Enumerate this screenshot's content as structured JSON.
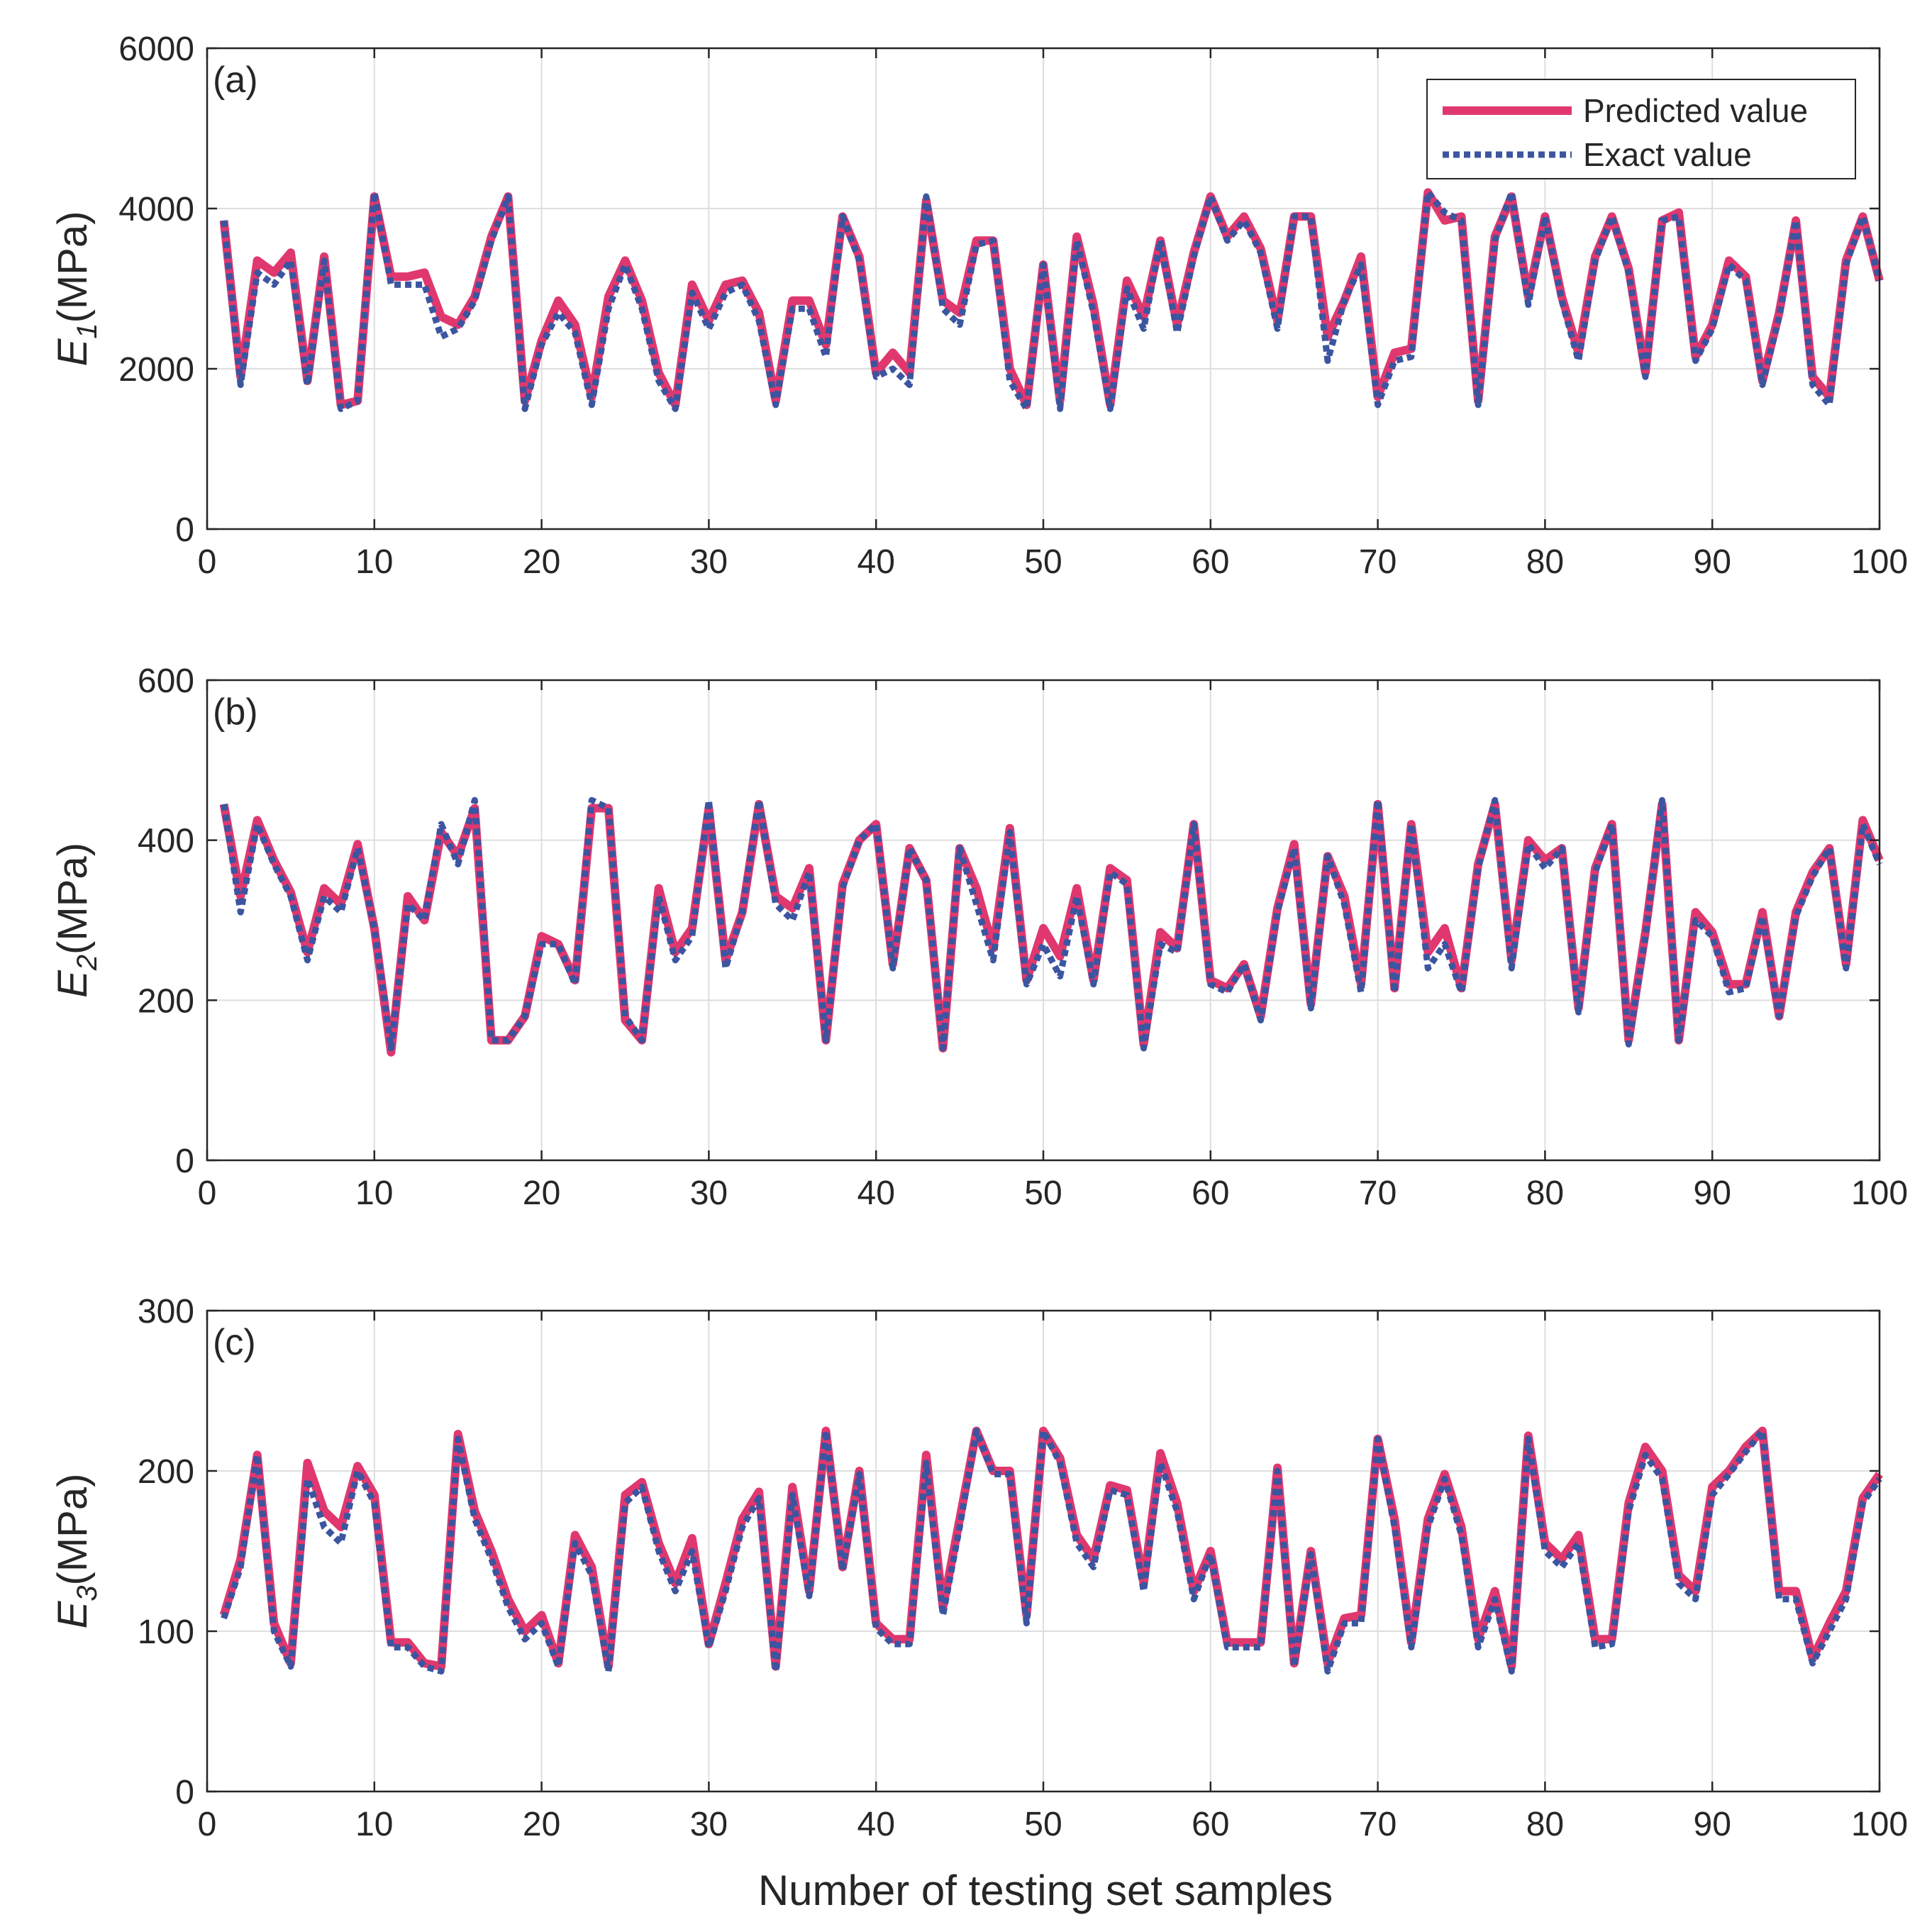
{
  "colors": {
    "predicted": "#e0386e",
    "exact": "#3b55a0",
    "grid": "#dedede",
    "axis": "#262626"
  },
  "legend": {
    "predicted_label": "Predicted value",
    "exact_label": "Exact value"
  },
  "x_axis_label": "Number of testing set samples",
  "chart_data": [
    {
      "type": "line",
      "panel_label": "(a)",
      "ylabel_main": "E",
      "ylabel_sub": "1",
      "ylabel_unit": "(MPa)",
      "xlim": [
        0,
        100
      ],
      "ylim": [
        0,
        6000
      ],
      "xticks": [
        0,
        10,
        20,
        30,
        40,
        50,
        60,
        70,
        80,
        90,
        100
      ],
      "yticks": [
        0,
        2000,
        4000,
        6000
      ],
      "grid": true,
      "legend_position": "top-right",
      "series": [
        {
          "name": "Predicted value",
          "values": [
            3850,
            1900,
            3350,
            3200,
            3450,
            1850,
            3400,
            1550,
            1600,
            4150,
            3150,
            3150,
            3200,
            2650,
            2550,
            2900,
            3650,
            4150,
            1600,
            2350,
            2850,
            2550,
            1650,
            2900,
            3350,
            2850,
            1950,
            1550,
            3050,
            2600,
            3050,
            3100,
            2700,
            1600,
            2850,
            2850,
            2300,
            3900,
            3400,
            1950,
            2200,
            1950,
            4100,
            2850,
            2700,
            3600,
            3600,
            2000,
            1550,
            3300,
            1600,
            3650,
            2800,
            1550,
            3100,
            2650,
            3600,
            2550,
            3450,
            4150,
            3650,
            3900,
            3500,
            2600,
            3900,
            3900,
            2400,
            2850,
            3400,
            1650,
            2200,
            2250,
            4200,
            3850,
            3900,
            1600,
            3650,
            4150,
            2900,
            3900,
            2900,
            2200,
            3400,
            3900,
            3250,
            1950,
            3850,
            3950,
            2150,
            2550,
            3350,
            3150,
            1850,
            2700,
            3850,
            1900,
            1650,
            3350,
            3900,
            3100
          ]
        },
        {
          "name": "Exact value",
          "values": [
            3850,
            1800,
            3200,
            3050,
            3350,
            1800,
            3350,
            1500,
            1600,
            4200,
            3050,
            3050,
            3050,
            2400,
            2500,
            2850,
            3600,
            4150,
            1500,
            2300,
            2700,
            2450,
            1550,
            2750,
            3300,
            2750,
            1850,
            1500,
            2950,
            2500,
            2950,
            3050,
            2600,
            1550,
            2750,
            2750,
            2150,
            3900,
            3350,
            1900,
            2000,
            1800,
            4150,
            2750,
            2550,
            3550,
            3600,
            1850,
            1500,
            3300,
            1500,
            3600,
            2700,
            1500,
            3000,
            2500,
            3600,
            2450,
            3400,
            4150,
            3600,
            3850,
            3450,
            2500,
            3900,
            3900,
            2100,
            2850,
            3300,
            1550,
            2100,
            2150,
            4200,
            3950,
            3850,
            1550,
            3600,
            4200,
            2800,
            3900,
            2850,
            2100,
            3350,
            3900,
            3200,
            1900,
            3850,
            3900,
            2100,
            2500,
            3300,
            3100,
            1800,
            2650,
            3850,
            1800,
            1550,
            3300,
            3900,
            3100
          ]
        }
      ]
    },
    {
      "type": "line",
      "panel_label": "(b)",
      "ylabel_main": "E",
      "ylabel_sub": "2",
      "ylabel_unit": "(MPa)",
      "xlim": [
        0,
        100
      ],
      "ylim": [
        0,
        600
      ],
      "xticks": [
        0,
        10,
        20,
        30,
        40,
        50,
        60,
        70,
        80,
        90,
        100
      ],
      "yticks": [
        0,
        200,
        400,
        600
      ],
      "grid": true,
      "series": [
        {
          "name": "Predicted value",
          "values": [
            445,
            330,
            425,
            375,
            335,
            260,
            340,
            320,
            395,
            290,
            135,
            330,
            300,
            410,
            380,
            440,
            150,
            150,
            180,
            280,
            270,
            225,
            440,
            440,
            175,
            150,
            340,
            260,
            290,
            440,
            250,
            310,
            445,
            330,
            315,
            365,
            150,
            345,
            400,
            420,
            245,
            390,
            350,
            140,
            390,
            340,
            265,
            415,
            225,
            290,
            255,
            340,
            225,
            365,
            350,
            145,
            285,
            265,
            420,
            225,
            215,
            245,
            180,
            315,
            395,
            195,
            380,
            330,
            220,
            445,
            215,
            420,
            260,
            290,
            215,
            370,
            445,
            250,
            400,
            375,
            390,
            190,
            365,
            420,
            150,
            285,
            445,
            150,
            310,
            285,
            220,
            220,
            310,
            180,
            310,
            360,
            390,
            245,
            425,
            375
          ]
        },
        {
          "name": "Exact value",
          "values": [
            445,
            310,
            420,
            370,
            330,
            250,
            330,
            310,
            390,
            290,
            140,
            320,
            300,
            420,
            370,
            450,
            150,
            150,
            180,
            270,
            270,
            220,
            450,
            440,
            180,
            150,
            330,
            250,
            280,
            450,
            240,
            310,
            450,
            320,
            300,
            360,
            150,
            340,
            400,
            420,
            240,
            390,
            350,
            140,
            390,
            320,
            250,
            410,
            220,
            270,
            230,
            330,
            220,
            360,
            345,
            140,
            270,
            260,
            420,
            220,
            210,
            245,
            175,
            310,
            390,
            190,
            380,
            320,
            210,
            450,
            210,
            420,
            240,
            270,
            210,
            365,
            450,
            240,
            395,
            365,
            390,
            185,
            360,
            420,
            145,
            280,
            450,
            150,
            300,
            280,
            210,
            215,
            305,
            180,
            305,
            355,
            390,
            240,
            420,
            370
          ]
        }
      ]
    },
    {
      "type": "line",
      "panel_label": "(c)",
      "ylabel_main": "E",
      "ylabel_sub": "3",
      "ylabel_unit": "(MPa)",
      "xlim": [
        0,
        100
      ],
      "ylim": [
        0,
        300
      ],
      "xticks": [
        0,
        10,
        20,
        30,
        40,
        50,
        60,
        70,
        80,
        90,
        100
      ],
      "yticks": [
        0,
        100,
        200,
        300
      ],
      "grid": true,
      "series": [
        {
          "name": "Predicted value",
          "values": [
            110,
            145,
            210,
            105,
            80,
            205,
            175,
            165,
            203,
            185,
            93,
            93,
            80,
            78,
            223,
            175,
            150,
            120,
            100,
            110,
            80,
            160,
            140,
            78,
            185,
            193,
            155,
            130,
            158,
            92,
            130,
            170,
            187,
            78,
            190,
            125,
            225,
            140,
            200,
            105,
            95,
            95,
            210,
            115,
            170,
            225,
            200,
            200,
            110,
            225,
            208,
            160,
            145,
            191,
            188,
            130,
            211,
            180,
            125,
            150,
            93,
            93,
            93,
            202,
            80,
            150,
            80,
            108,
            110,
            220,
            170,
            93,
            170,
            198,
            165,
            95,
            125,
            78,
            222,
            155,
            145,
            160,
            95,
            95,
            180,
            215,
            200,
            135,
            125,
            190,
            200,
            215,
            225,
            125,
            125,
            83,
            105,
            125,
            183,
            198
          ]
        },
        {
          "name": "Exact value",
          "values": [
            108,
            140,
            210,
            100,
            78,
            195,
            165,
            155,
            200,
            180,
            90,
            90,
            78,
            75,
            220,
            170,
            145,
            115,
            95,
            105,
            78,
            155,
            135,
            75,
            180,
            190,
            150,
            125,
            150,
            90,
            125,
            165,
            183,
            75,
            185,
            122,
            225,
            138,
            198,
            102,
            92,
            92,
            205,
            110,
            165,
            225,
            198,
            198,
            105,
            225,
            205,
            155,
            140,
            188,
            185,
            125,
            205,
            175,
            120,
            148,
            90,
            90,
            90,
            200,
            78,
            148,
            75,
            105,
            105,
            220,
            165,
            90,
            165,
            195,
            160,
            90,
            120,
            75,
            220,
            150,
            140,
            155,
            90,
            92,
            175,
            210,
            195,
            130,
            120,
            185,
            198,
            212,
            225,
            120,
            120,
            80,
            100,
            120,
            180,
            195
          ]
        }
      ]
    }
  ]
}
